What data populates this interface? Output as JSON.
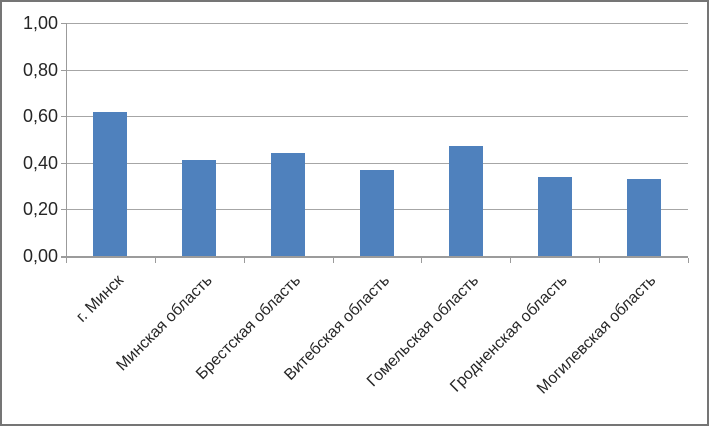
{
  "chart_data": {
    "type": "bar",
    "title": "",
    "categories": [
      "г. Минск",
      "Минская область",
      "Брестская область",
      "Витебская область",
      "Гомельская область",
      "Гродненская область",
      "Могилевская область"
    ],
    "values": [
      0.62,
      0.41,
      0.44,
      0.37,
      0.47,
      0.34,
      0.33
    ],
    "xlabel": "",
    "ylabel": "",
    "ylim": [
      0,
      1
    ],
    "yticks": [
      {
        "value": 0.0,
        "label": "0,00"
      },
      {
        "value": 0.2,
        "label": "0,20"
      },
      {
        "value": 0.4,
        "label": "0,40"
      },
      {
        "value": 0.6,
        "label": "0,60"
      },
      {
        "value": 0.8,
        "label": "0,80"
      },
      {
        "value": 1.0,
        "label": "1,00"
      }
    ],
    "grid": true,
    "legend": false,
    "category_label_rotation_deg": 45,
    "colors": {
      "bar": "#4F81BD",
      "gridline": "#A6A6A6",
      "axis": "#9B9B9B",
      "text": "#262626",
      "frame_border": "#757575",
      "background": "#FFFFFF"
    }
  }
}
